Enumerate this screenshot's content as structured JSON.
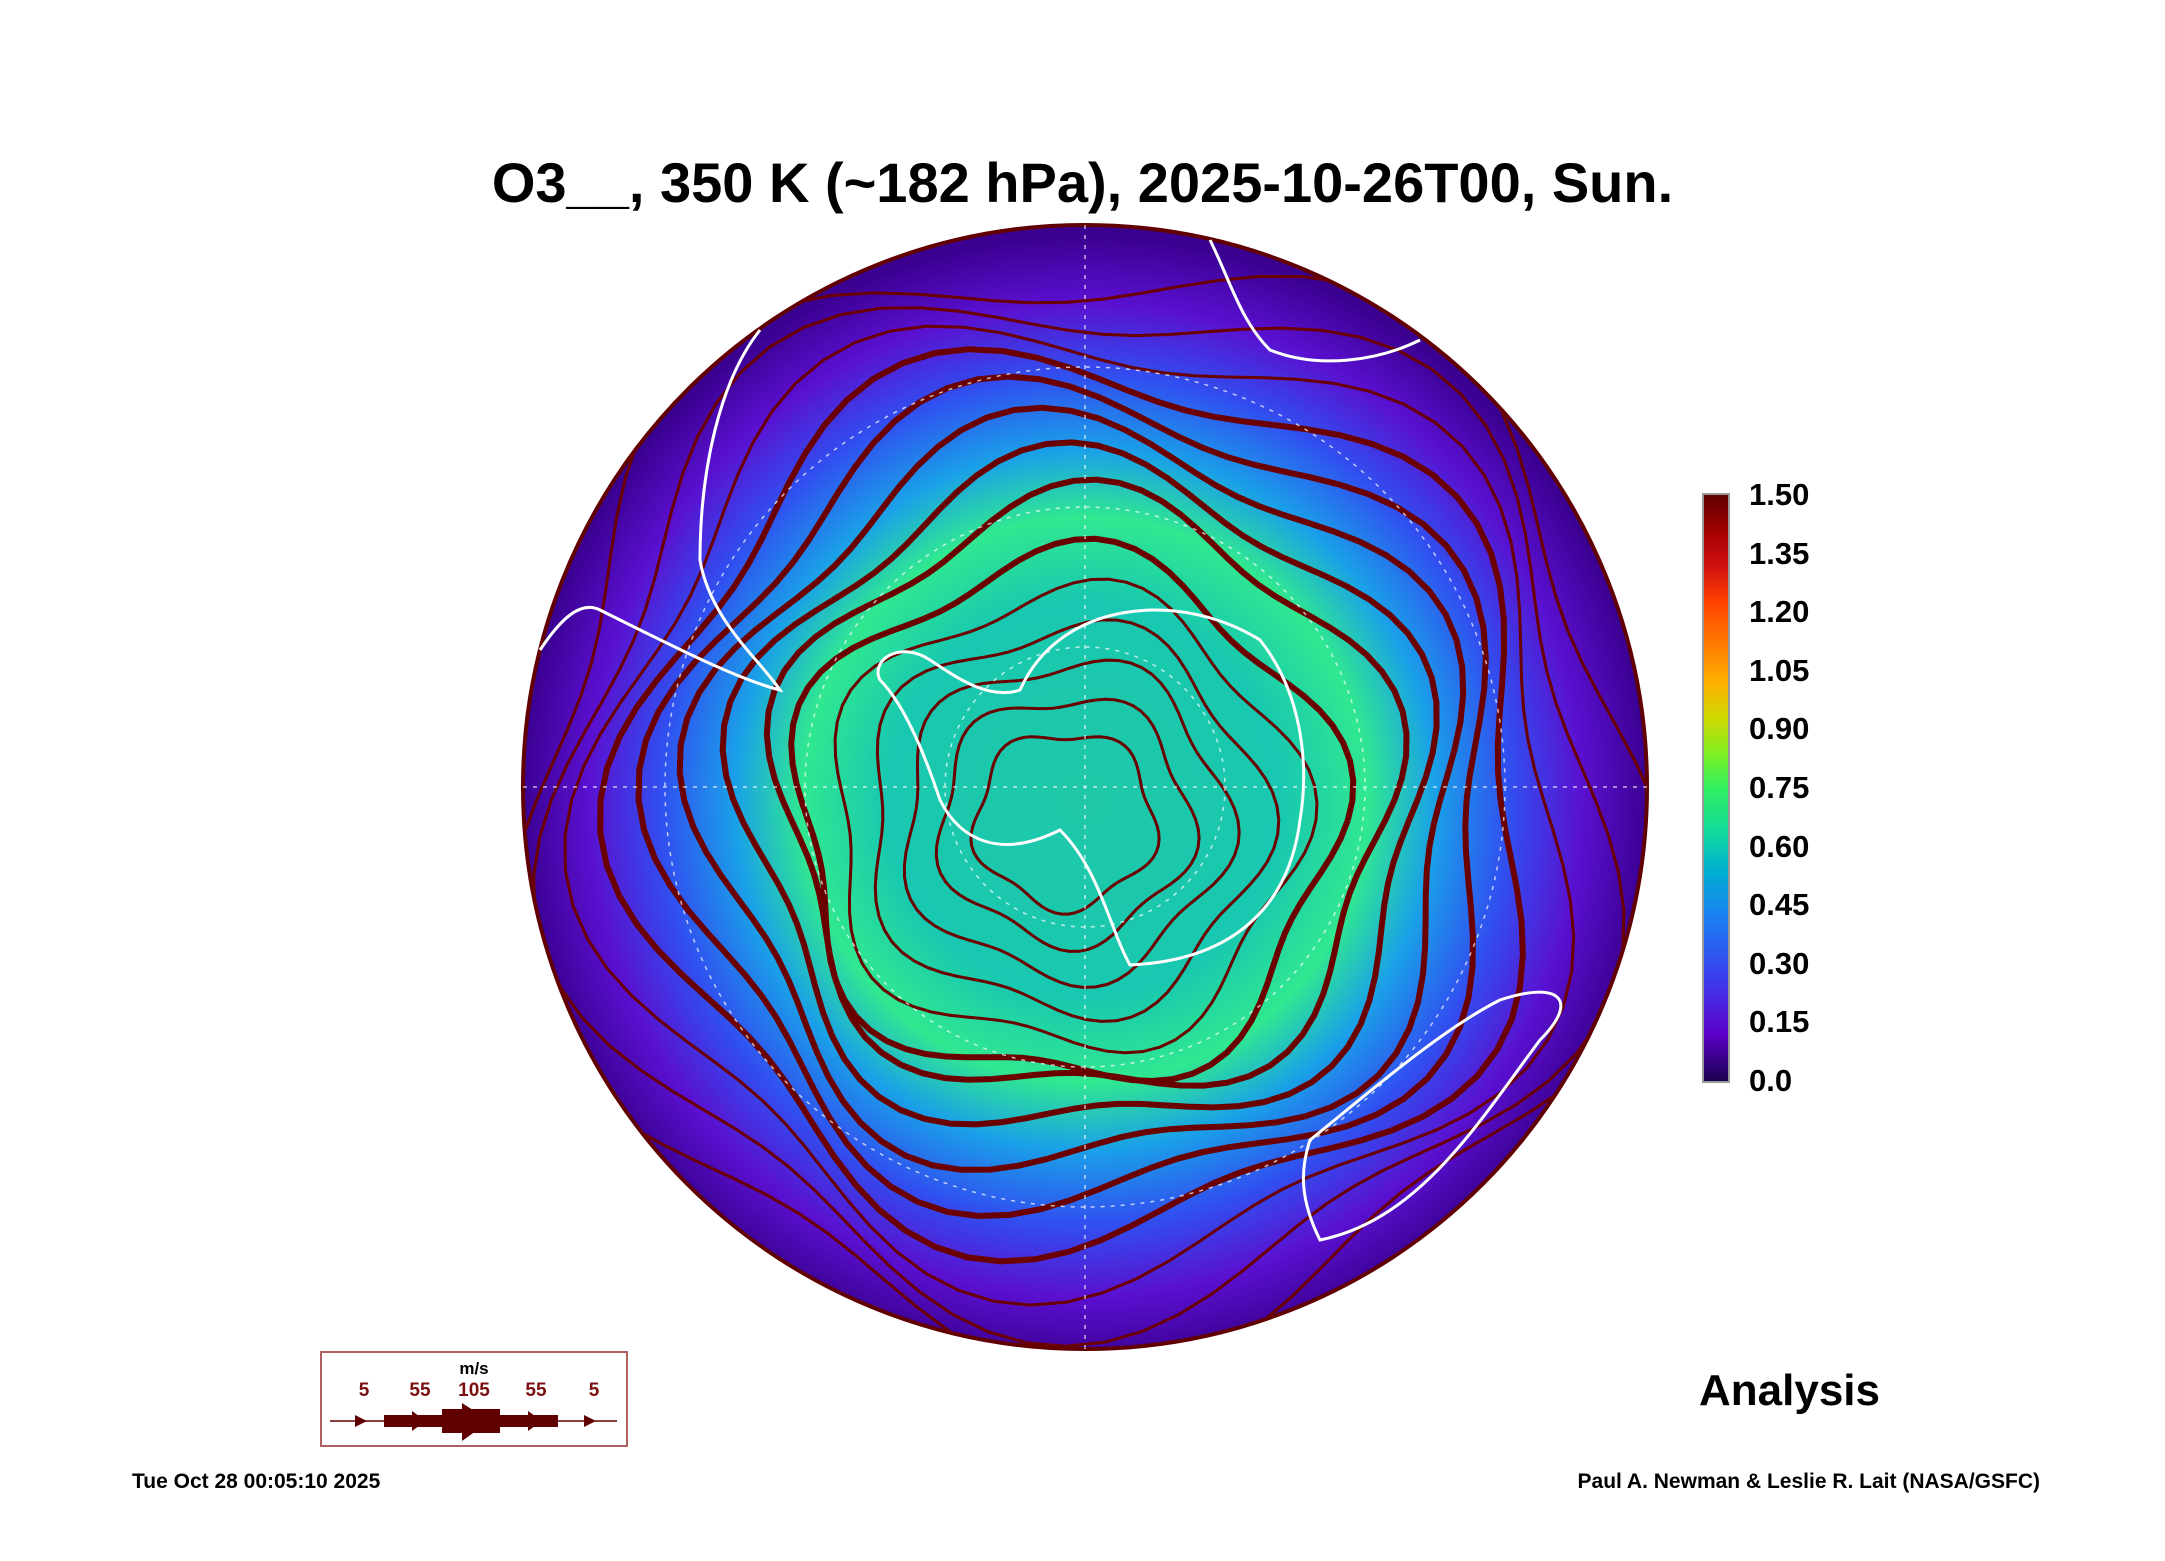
{
  "chart_data": {
    "type": "heatmap",
    "title": "O3__, 350 K (~182 hPa), 2025-10-26T00, Sun.",
    "projection": "south-polar-stereographic",
    "variable": "O3__",
    "colorbar": {
      "ticks": [
        "1.50",
        "1.35",
        "1.20",
        "1.05",
        "0.90",
        "0.75",
        "0.60",
        "0.45",
        "0.30",
        "0.15",
        "0.0"
      ],
      "range": [
        0.0,
        1.5
      ]
    },
    "wind_legend": {
      "unit": "m/s",
      "labels": [
        "5",
        "55",
        "105",
        "55",
        "5"
      ],
      "color": "#600000"
    },
    "label": "Analysis"
  },
  "footer": {
    "timestamp": "Tue Oct 28 00:05:10 2025",
    "credit": "Paul A. Newman & Leslie R. Lait (NASA/GSFC)"
  }
}
